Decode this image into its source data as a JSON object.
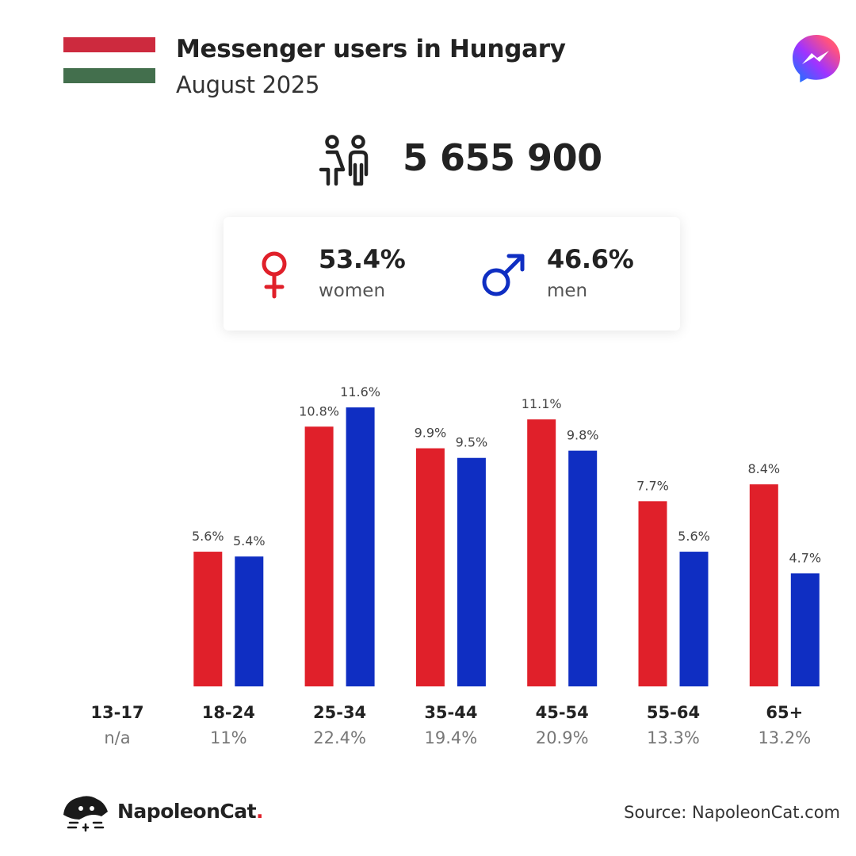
{
  "header": {
    "title": "Messenger users in Hungary",
    "subtitle": "August 2025",
    "flag_colors": [
      "#cd2a3e",
      "#ffffff",
      "#436f4d"
    ]
  },
  "total": {
    "value": "5 655 900",
    "icon": "people-icon"
  },
  "gender": {
    "women": {
      "percent": "53.4%",
      "label": "women",
      "icon": "female-symbol-icon",
      "color": "#e0202a"
    },
    "men": {
      "percent": "46.6%",
      "label": "men",
      "icon": "male-symbol-icon",
      "color": "#0f2ec2"
    }
  },
  "chart_data": {
    "type": "bar",
    "categories": [
      "13-17",
      "18-24",
      "25-34",
      "35-44",
      "45-54",
      "55-64",
      "65+"
    ],
    "category_totals": [
      "n/a",
      "11%",
      "22.4%",
      "19.4%",
      "20.9%",
      "13.3%",
      "13.2%"
    ],
    "series": [
      {
        "key": "women",
        "color": "#e0202a",
        "values": [
          null,
          5.6,
          10.8,
          9.9,
          11.1,
          7.7,
          8.4
        ],
        "labels": [
          "",
          "5.6%",
          "10.8%",
          "9.9%",
          "11.1%",
          "7.7%",
          "8.4%"
        ]
      },
      {
        "key": "men",
        "color": "#0f2ec2",
        "values": [
          null,
          5.4,
          11.6,
          9.5,
          9.8,
          5.6,
          4.7
        ],
        "labels": [
          "",
          "5.4%",
          "11.6%",
          "9.5%",
          "9.8%",
          "5.6%",
          "4.7%"
        ]
      }
    ],
    "ylim": [
      0,
      11.6
    ],
    "grid": false,
    "legend": "none"
  },
  "footer": {
    "brand": "NapoleonCat",
    "brand_dot": ".",
    "source": "Source: NapoleonCat.com"
  },
  "icons": {
    "messenger": "messenger-logo-icon",
    "brand": "napoleoncat-logo-icon"
  }
}
